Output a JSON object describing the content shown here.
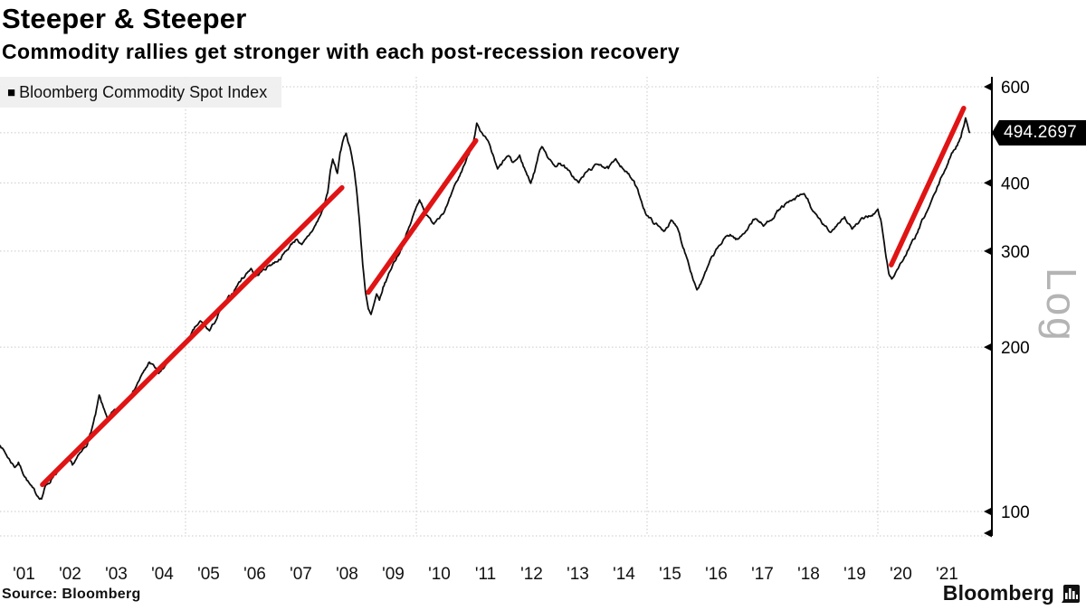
{
  "header": {
    "title": "Steeper & Steeper",
    "subtitle": "Commodity rallies get stronger with each post-recession recovery"
  },
  "legend": {
    "marker": "■",
    "label": "Bloomberg Commodity Spot Index"
  },
  "axis": {
    "log_label": "Log",
    "last_price_label": "494.2697"
  },
  "footer": {
    "source": "Source: Bloomberg",
    "brand": "Bloomberg"
  },
  "colors": {
    "line": "#0d0d0d",
    "trend": "#e01414",
    "grid": "#c9c9c9",
    "axis": "#000000",
    "badge_bg": "#000000",
    "badge_text": "#ffffff",
    "log_label": "#b4b4b4"
  },
  "chart_data": {
    "type": "line",
    "title": "Steeper & Steeper",
    "subtitle": "Commodity rallies get stronger with each post-recession recovery",
    "legend_position": "top-left",
    "grid": true,
    "last_price": 494.2697,
    "y_axis": {
      "scale": "log",
      "side": "right",
      "label": "Log",
      "ticks": [
        100,
        200,
        300,
        400,
        600
      ],
      "range": [
        90,
        620
      ]
    },
    "x_axis": {
      "range": [
        2000.98,
        2022.45
      ],
      "tick_years": [
        2001,
        2002,
        2003,
        2004,
        2005,
        2006,
        2007,
        2008,
        2009,
        2010,
        2011,
        2012,
        2013,
        2014,
        2015,
        2016,
        2017,
        2018,
        2019,
        2020,
        2021
      ],
      "tick_labels": [
        "'01",
        "'02",
        "'03",
        "'04",
        "'05",
        "'06",
        "'07",
        "'08",
        "'09",
        "'10",
        "'11",
        "'12",
        "'13",
        "'14",
        "'15",
        "'16",
        "'17",
        "'18",
        "'19",
        "'20",
        "'21"
      ],
      "gridline_years": [
        2005,
        2010,
        2015,
        2020
      ]
    },
    "trend_lines": [
      {
        "from": [
          2001.9,
          112
        ],
        "to": [
          2008.39,
          392
        ]
      },
      {
        "from": [
          2008.96,
          252
        ],
        "to": [
          2011.29,
          478
        ]
      },
      {
        "from": [
          2020.29,
          283
        ],
        "to": [
          2021.86,
          548
        ]
      }
    ],
    "noise": {
      "seed": 7,
      "amplitude": 0.018,
      "step_years": 0.02
    },
    "series": [
      {
        "name": "Bloomberg Commodity Spot Index",
        "points": [
          [
            2000.98,
            133
          ],
          [
            2001.05,
            130
          ],
          [
            2001.12,
            127
          ],
          [
            2001.2,
            124
          ],
          [
            2001.3,
            121
          ],
          [
            2001.38,
            123
          ],
          [
            2001.48,
            118
          ],
          [
            2001.58,
            114
          ],
          [
            2001.68,
            110
          ],
          [
            2001.78,
            107
          ],
          [
            2001.88,
            106
          ],
          [
            2001.96,
            111
          ],
          [
            2002.05,
            113
          ],
          [
            2002.15,
            117
          ],
          [
            2002.25,
            119
          ],
          [
            2002.35,
            122
          ],
          [
            2002.45,
            124
          ],
          [
            2002.55,
            121
          ],
          [
            2002.65,
            125
          ],
          [
            2002.75,
            128
          ],
          [
            2002.85,
            132
          ],
          [
            2002.95,
            140
          ],
          [
            2003.05,
            150
          ],
          [
            2003.13,
            162
          ],
          [
            2003.22,
            154
          ],
          [
            2003.32,
            148
          ],
          [
            2003.42,
            151
          ],
          [
            2003.52,
            153
          ],
          [
            2003.62,
            156
          ],
          [
            2003.72,
            160
          ],
          [
            2003.82,
            164
          ],
          [
            2003.92,
            170
          ],
          [
            2004.02,
            176
          ],
          [
            2004.12,
            181
          ],
          [
            2004.22,
            188
          ],
          [
            2004.32,
            184
          ],
          [
            2004.42,
            179
          ],
          [
            2004.52,
            182
          ],
          [
            2004.62,
            189
          ],
          [
            2004.72,
            193
          ],
          [
            2004.82,
            197
          ],
          [
            2004.92,
            200
          ],
          [
            2005.02,
            204
          ],
          [
            2005.12,
            210
          ],
          [
            2005.22,
            217
          ],
          [
            2005.32,
            222
          ],
          [
            2005.42,
            218
          ],
          [
            2005.52,
            214
          ],
          [
            2005.62,
            221
          ],
          [
            2005.72,
            230
          ],
          [
            2005.82,
            238
          ],
          [
            2005.92,
            244
          ],
          [
            2006.02,
            251
          ],
          [
            2006.12,
            260
          ],
          [
            2006.22,
            267
          ],
          [
            2006.32,
            273
          ],
          [
            2006.42,
            280
          ],
          [
            2006.52,
            270
          ],
          [
            2006.62,
            274
          ],
          [
            2006.72,
            278
          ],
          [
            2006.82,
            283
          ],
          [
            2006.92,
            286
          ],
          [
            2007.02,
            290
          ],
          [
            2007.12,
            296
          ],
          [
            2007.22,
            303
          ],
          [
            2007.32,
            311
          ],
          [
            2007.42,
            317
          ],
          [
            2007.52,
            307
          ],
          [
            2007.62,
            314
          ],
          [
            2007.72,
            324
          ],
          [
            2007.82,
            335
          ],
          [
            2007.92,
            348
          ],
          [
            2008.0,
            362
          ],
          [
            2008.08,
            385
          ],
          [
            2008.14,
            420
          ],
          [
            2008.19,
            440
          ],
          [
            2008.24,
            428
          ],
          [
            2008.29,
            415
          ],
          [
            2008.35,
            455
          ],
          [
            2008.42,
            478
          ],
          [
            2008.48,
            492
          ],
          [
            2008.54,
            472
          ],
          [
            2008.6,
            452
          ],
          [
            2008.66,
            420
          ],
          [
            2008.72,
            378
          ],
          [
            2008.78,
            330
          ],
          [
            2008.84,
            285
          ],
          [
            2008.9,
            252
          ],
          [
            2008.96,
            234
          ],
          [
            2009.02,
            228
          ],
          [
            2009.08,
            238
          ],
          [
            2009.14,
            248
          ],
          [
            2009.2,
            241
          ],
          [
            2009.28,
            256
          ],
          [
            2009.36,
            266
          ],
          [
            2009.44,
            277
          ],
          [
            2009.52,
            287
          ],
          [
            2009.6,
            295
          ],
          [
            2009.68,
            305
          ],
          [
            2009.76,
            318
          ],
          [
            2009.84,
            330
          ],
          [
            2009.92,
            345
          ],
          [
            2010.0,
            360
          ],
          [
            2010.07,
            374
          ],
          [
            2010.15,
            362
          ],
          [
            2010.22,
            350
          ],
          [
            2010.3,
            342
          ],
          [
            2010.38,
            338
          ],
          [
            2010.46,
            346
          ],
          [
            2010.54,
            352
          ],
          [
            2010.62,
            358
          ],
          [
            2010.7,
            368
          ],
          [
            2010.78,
            382
          ],
          [
            2010.86,
            396
          ],
          [
            2010.94,
            410
          ],
          [
            2011.02,
            428
          ],
          [
            2011.1,
            444
          ],
          [
            2011.18,
            462
          ],
          [
            2011.25,
            486
          ],
          [
            2011.31,
            516
          ],
          [
            2011.38,
            496
          ],
          [
            2011.45,
            484
          ],
          [
            2011.52,
            477
          ],
          [
            2011.6,
            464
          ],
          [
            2011.68,
            442
          ],
          [
            2011.76,
            421
          ],
          [
            2011.84,
            430
          ],
          [
            2011.92,
            441
          ],
          [
            2012.0,
            447
          ],
          [
            2012.08,
            434
          ],
          [
            2012.16,
            440
          ],
          [
            2012.24,
            447
          ],
          [
            2012.32,
            430
          ],
          [
            2012.4,
            414
          ],
          [
            2012.48,
            401
          ],
          [
            2012.56,
            420
          ],
          [
            2012.64,
            448
          ],
          [
            2012.72,
            468
          ],
          [
            2012.8,
            458
          ],
          [
            2012.88,
            444
          ],
          [
            2012.96,
            432
          ],
          [
            2013.04,
            430
          ],
          [
            2013.12,
            436
          ],
          [
            2013.2,
            430
          ],
          [
            2013.28,
            421
          ],
          [
            2013.36,
            413
          ],
          [
            2013.44,
            407
          ],
          [
            2013.52,
            400
          ],
          [
            2013.6,
            409
          ],
          [
            2013.68,
            417
          ],
          [
            2013.76,
            423
          ],
          [
            2013.84,
            427
          ],
          [
            2013.92,
            431
          ],
          [
            2014.0,
            434
          ],
          [
            2014.08,
            429
          ],
          [
            2014.16,
            425
          ],
          [
            2014.24,
            432
          ],
          [
            2014.32,
            437
          ],
          [
            2014.4,
            433
          ],
          [
            2014.48,
            428
          ],
          [
            2014.56,
            419
          ],
          [
            2014.64,
            410
          ],
          [
            2014.72,
            400
          ],
          [
            2014.8,
            385
          ],
          [
            2014.88,
            370
          ],
          [
            2014.96,
            355
          ],
          [
            2015.04,
            346
          ],
          [
            2015.12,
            340
          ],
          [
            2015.2,
            336
          ],
          [
            2015.28,
            330
          ],
          [
            2015.36,
            327
          ],
          [
            2015.44,
            334
          ],
          [
            2015.52,
            341
          ],
          [
            2015.6,
            334
          ],
          [
            2015.68,
            327
          ],
          [
            2015.76,
            310
          ],
          [
            2015.84,
            297
          ],
          [
            2015.92,
            283
          ],
          [
            2016.0,
            268
          ],
          [
            2016.08,
            256
          ],
          [
            2016.16,
            262
          ],
          [
            2016.24,
            270
          ],
          [
            2016.32,
            280
          ],
          [
            2016.4,
            290
          ],
          [
            2016.48,
            298
          ],
          [
            2016.56,
            306
          ],
          [
            2016.64,
            312
          ],
          [
            2016.72,
            318
          ],
          [
            2016.8,
            322
          ],
          [
            2016.88,
            318
          ],
          [
            2016.96,
            315
          ],
          [
            2017.04,
            319
          ],
          [
            2017.12,
            325
          ],
          [
            2017.2,
            334
          ],
          [
            2017.28,
            341
          ],
          [
            2017.36,
            345
          ],
          [
            2017.44,
            339
          ],
          [
            2017.52,
            333
          ],
          [
            2017.6,
            338
          ],
          [
            2017.68,
            344
          ],
          [
            2017.76,
            350
          ],
          [
            2017.84,
            356
          ],
          [
            2017.92,
            361
          ],
          [
            2018.0,
            365
          ],
          [
            2018.08,
            367
          ],
          [
            2018.16,
            370
          ],
          [
            2018.24,
            374
          ],
          [
            2018.32,
            377
          ],
          [
            2018.4,
            381
          ],
          [
            2018.48,
            372
          ],
          [
            2018.56,
            360
          ],
          [
            2018.64,
            350
          ],
          [
            2018.72,
            342
          ],
          [
            2018.8,
            336
          ],
          [
            2018.88,
            330
          ],
          [
            2018.96,
            324
          ],
          [
            2019.04,
            330
          ],
          [
            2019.12,
            337
          ],
          [
            2019.2,
            343
          ],
          [
            2019.28,
            347
          ],
          [
            2019.36,
            338
          ],
          [
            2019.44,
            330
          ],
          [
            2019.52,
            334
          ],
          [
            2019.6,
            338
          ],
          [
            2019.68,
            342
          ],
          [
            2019.76,
            346
          ],
          [
            2019.84,
            349
          ],
          [
            2019.92,
            352
          ],
          [
            2020.0,
            356
          ],
          [
            2020.06,
            342
          ],
          [
            2020.12,
            318
          ],
          [
            2020.18,
            292
          ],
          [
            2020.24,
            272
          ],
          [
            2020.3,
            267
          ],
          [
            2020.36,
            273
          ],
          [
            2020.44,
            280
          ],
          [
            2020.52,
            287
          ],
          [
            2020.6,
            295
          ],
          [
            2020.68,
            303
          ],
          [
            2020.76,
            312
          ],
          [
            2020.84,
            321
          ],
          [
            2020.92,
            333
          ],
          [
            2021.0,
            345
          ],
          [
            2021.08,
            356
          ],
          [
            2021.16,
            369
          ],
          [
            2021.24,
            382
          ],
          [
            2021.32,
            397
          ],
          [
            2021.4,
            413
          ],
          [
            2021.48,
            428
          ],
          [
            2021.56,
            443
          ],
          [
            2021.64,
            458
          ],
          [
            2021.72,
            470
          ],
          [
            2021.8,
            488
          ],
          [
            2021.86,
            510
          ],
          [
            2021.9,
            528
          ],
          [
            2021.94,
            516
          ],
          [
            2021.98,
            502
          ],
          [
            2022.0,
            494.2697
          ]
        ]
      }
    ]
  }
}
